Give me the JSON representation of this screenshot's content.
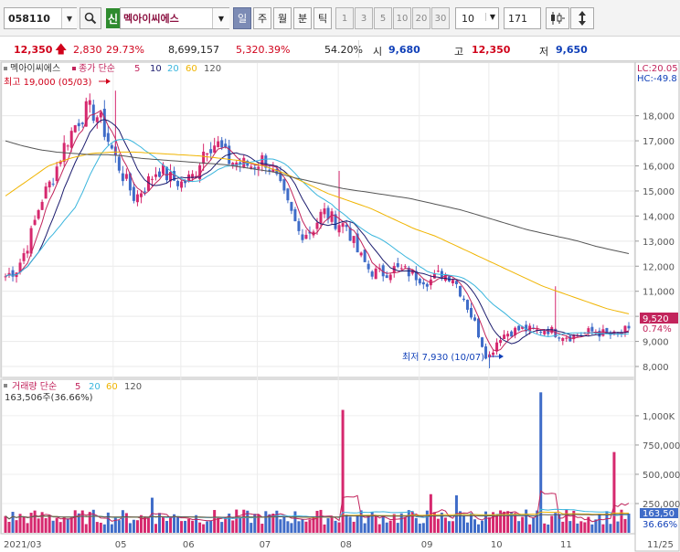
{
  "toolbar": {
    "code": "058110",
    "market_badge": "신",
    "stock_name": "멕아이씨에스",
    "periods": [
      "일",
      "주",
      "월",
      "분",
      "틱"
    ],
    "active_period": "일",
    "tick_units": [
      "1",
      "3",
      "5",
      "10",
      "20",
      "30"
    ],
    "count_select": "10",
    "count_value": "171",
    "icons": [
      "search-icon",
      "dropdown-arrow-icon",
      "candle-toggle-icon",
      "vertical-arrows-icon"
    ]
  },
  "quote": {
    "price": "12,350",
    "change": "2,830",
    "change_pct": "29.73%",
    "volume": "8,699,157",
    "volume_ratio": "5,320.39%",
    "turnover": "54.20%",
    "open_label": "시",
    "open": "9,680",
    "high_label": "고",
    "high": "12,350",
    "low_label": "저",
    "low": "9,650"
  },
  "price_chart": {
    "legend": {
      "name": "멕아이씨에스",
      "ma_title": "종가 단순",
      "ma_periods": [
        "5",
        "10",
        "20",
        "60",
        "120"
      ]
    },
    "right_info": [
      "LC:20.05",
      "HC:-49.8"
    ],
    "y_ticks": [
      "18,000",
      "17,000",
      "16,000",
      "15,000",
      "14,000",
      "13,000",
      "12,000",
      "11,000",
      "10,000",
      "9,000",
      "8,000"
    ],
    "current_price_label": "9,520",
    "current_pct_label": "0.74%",
    "high_annotation": "최고 19,000 (05/03)",
    "low_annotation": "최저 7,930 (10/07)",
    "colors": {
      "up": "#d6286e",
      "down": "#3f6cc8",
      "ma5": "#c2245c",
      "ma10": "#1c1c6e",
      "ma20": "#39b5dd",
      "ma60": "#f0b400",
      "ma120": "#555555"
    }
  },
  "chart_data": [
    {
      "type": "line",
      "title": "멕아이씨에스",
      "x_ticks": [
        "2021/03",
        "05",
        "06",
        "07",
        "08",
        "09",
        "10",
        "11",
        "11/25"
      ],
      "ylim": [
        7600,
        20100
      ],
      "series": [
        {
          "name": "종가",
          "values": [
            11600,
            11900,
            13000,
            14600,
            15500,
            16800,
            17700,
            18300,
            17900,
            16700,
            15600,
            14700,
            15300,
            15900,
            15500,
            15300,
            15600,
            16800,
            16900,
            16200,
            16100,
            16000,
            16300,
            15500,
            14400,
            13300,
            13400,
            14200,
            13800,
            13600,
            12500,
            11800,
            11700,
            11900,
            11800,
            11600,
            11400,
            11700,
            11600,
            10700,
            9600,
            8300,
            9200,
            9400,
            9500,
            9400,
            9500,
            9300,
            9200,
            9300,
            9400,
            9300,
            9200,
            9520
          ]
        },
        {
          "name": "120",
          "values": [
            17000,
            16800,
            16650,
            16550,
            16500,
            16450,
            16450,
            16400,
            16300,
            16250,
            16200,
            16150,
            16100,
            16050,
            15950,
            15850,
            15750,
            15550,
            15400,
            15250,
            15100,
            15000,
            14900,
            14800,
            14700,
            14550,
            14400,
            14250,
            14050,
            13850,
            13650,
            13450,
            13300,
            13150,
            13000,
            12800,
            12650,
            12500
          ]
        },
        {
          "name": "60",
          "values": [
            14800,
            15400,
            16000,
            16300,
            16500,
            16550,
            16550,
            16500,
            16450,
            16400,
            16300,
            16200,
            16000,
            15700,
            15300,
            14900,
            14600,
            14300,
            13900,
            13500,
            13200,
            12800,
            12400,
            12000,
            11600,
            11200,
            10900,
            10600,
            10300,
            10100
          ]
        }
      ]
    },
    {
      "type": "bar",
      "title": "거래량 단순",
      "ylabel": "",
      "y_ticks": [
        "1,000K",
        "750,000",
        "500,000",
        "250,000"
      ],
      "ylim": [
        0,
        1200000
      ],
      "current_volume_label": "163,506주(36.66%)",
      "right_labels": [
        "163,50",
        "36.66%"
      ],
      "ma_periods": [
        "5",
        "20",
        "60",
        "120"
      ],
      "spikes": [
        {
          "x_label": "05",
          "value": 300000
        },
        {
          "x_label": "08",
          "value": 1050000
        },
        {
          "x_label": "09",
          "value": 330000
        },
        {
          "x_label": "10",
          "value": 320000
        },
        {
          "x_label": "11",
          "value": 1200000
        },
        {
          "x_label": "11/25",
          "value": 690000
        }
      ]
    }
  ]
}
